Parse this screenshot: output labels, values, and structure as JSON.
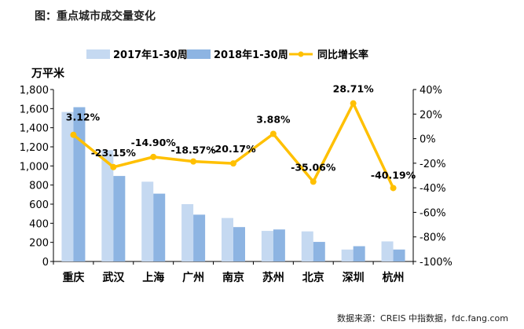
{
  "figure_title": "图：重点城市成交量变化",
  "source_note": "数据来源：CREIS 中指数据，fdc.fang.com",
  "colors": {
    "series_2017": "#c5d9f1",
    "series_2018": "#8db4e2",
    "growth_line": "#ffc000"
  },
  "chart_data": {
    "type": "bar",
    "categories": [
      "重庆",
      "武汉",
      "上海",
      "广州",
      "南京",
      "苏州",
      "北京",
      "深圳",
      "杭州"
    ],
    "series": [
      {
        "name": "2017年1-30周",
        "axis": "left",
        "values": [
          1565,
          1165,
          835,
          600,
          455,
          320,
          315,
          125,
          210
        ]
      },
      {
        "name": "2018年1-30周",
        "axis": "left",
        "values": [
          1615,
          895,
          710,
          490,
          360,
          335,
          205,
          160,
          125
        ]
      },
      {
        "name": "同比增长率",
        "type": "line",
        "axis": "right",
        "values": [
          3.12,
          -23.15,
          -14.9,
          -18.57,
          -20.17,
          3.88,
          -35.06,
          28.71,
          -40.19
        ],
        "labels": [
          "3.12%",
          "-23.15%",
          "-14.90%",
          "-18.57%",
          "-20.17%",
          "3.88%",
          "-35.06%",
          "28.71%",
          "-40.19%"
        ]
      }
    ],
    "ylabel": "万平米",
    "ylim": [
      0,
      1800
    ],
    "yticks": [
      "0",
      "200",
      "400",
      "600",
      "800",
      "1,000",
      "1,200",
      "1,400",
      "1,600",
      "1,800"
    ],
    "y2lim": [
      -100,
      40
    ],
    "y2ticks": [
      "-100%",
      "-80%",
      "-60%",
      "-40%",
      "-20%",
      "0%",
      "20%",
      "40%"
    ],
    "legend_position": "top",
    "grid": false
  }
}
